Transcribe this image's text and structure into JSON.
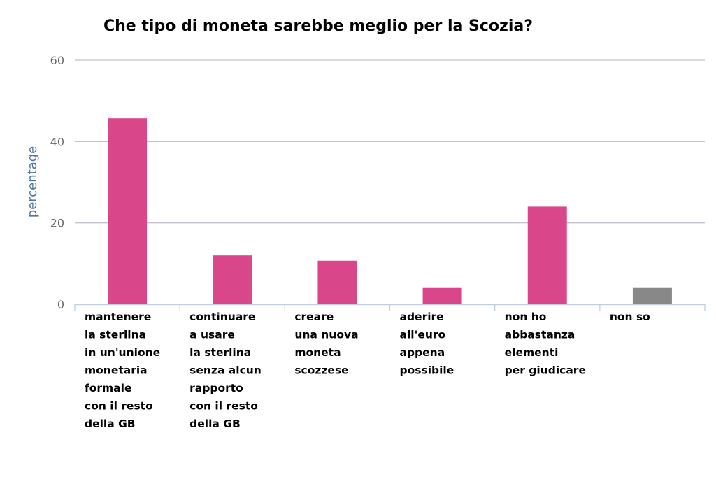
{
  "chart_data": {
    "type": "bar",
    "title": "Che tipo di moneta sarebbe meglio per la Scozia?",
    "xlabel": "",
    "ylabel": "percentage",
    "ylim": [
      0,
      60
    ],
    "yticks": [
      0,
      20,
      40,
      60
    ],
    "grid": true,
    "categories": [
      [
        "mantenere",
        "la sterlina",
        "in un'unione",
        "monetaria",
        "formale",
        "con il resto",
        "della GB"
      ],
      [
        "continuare",
        "a usare",
        "la sterlina",
        "senza alcun",
        "rapporto",
        "con il resto",
        "della GB"
      ],
      [
        "creare",
        "una nuova",
        "moneta",
        "scozzese"
      ],
      [
        "aderire",
        "all'euro",
        "appena",
        "possibile"
      ],
      [
        "non ho",
        "abbastanza",
        "elementi",
        "per giudicare"
      ],
      [
        "non so"
      ]
    ],
    "values": [
      45.7,
      12,
      10.7,
      4,
      24,
      4
    ],
    "colors": [
      "#d9478a",
      "#d9478a",
      "#d9478a",
      "#d9478a",
      "#d9478a",
      "#888888"
    ]
  }
}
